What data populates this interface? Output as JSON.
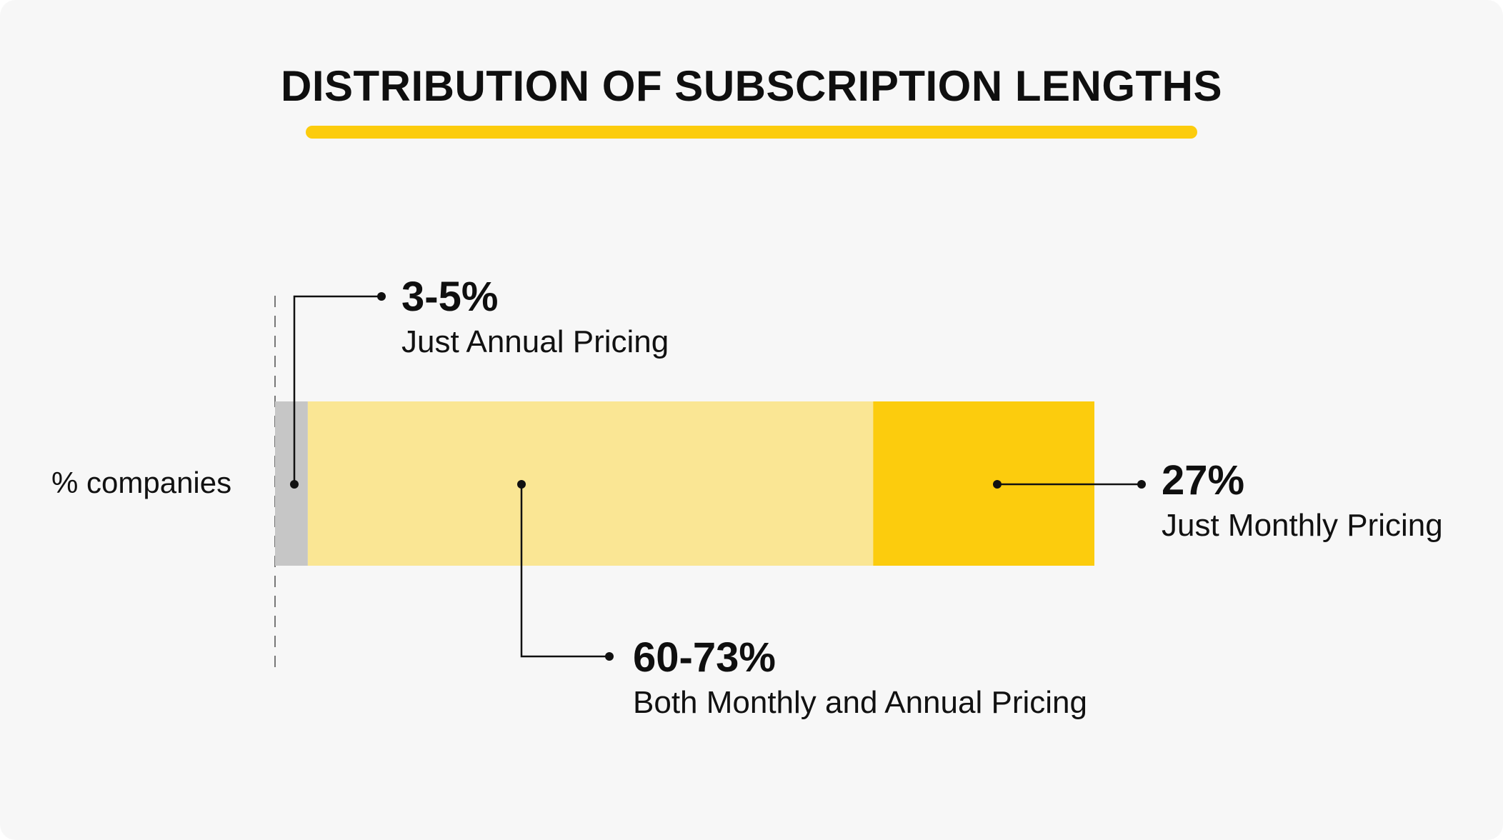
{
  "title": "DISTRIBUTION OF SUBSCRIPTION LENGTHS",
  "colors": {
    "background": "#f7f7f7",
    "accent": "#fccc0d",
    "annual": "#c6c6c6",
    "both": "#fae694",
    "monthly": "#fccc0d",
    "leader": "#111111"
  },
  "chart_data": {
    "type": "bar",
    "orientation": "horizontal-stacked",
    "title": "DISTRIBUTION OF SUBSCRIPTION LENGTHS",
    "ylabel": "% companies",
    "xlabel": "",
    "xlim": [
      0,
      100
    ],
    "categories": [
      "% companies"
    ],
    "series": [
      {
        "name": "Just Annual Pricing",
        "values": [
          4
        ],
        "label": "3-5%",
        "color": "#c6c6c6"
      },
      {
        "name": "Both Monthly and Annual Pricing",
        "values": [
          69
        ],
        "label": "60-73%",
        "color": "#fae694"
      },
      {
        "name": "Just Monthly Pricing",
        "values": [
          27
        ],
        "label": "27%",
        "color": "#fccc0d"
      }
    ],
    "grid": false,
    "legend": "callouts"
  },
  "callouts": {
    "annual": {
      "value": "3-5%",
      "label": "Just Annual Pricing"
    },
    "both": {
      "value": "60-73%",
      "label": "Both Monthly and Annual Pricing"
    },
    "monthly": {
      "value": "27%",
      "label": "Just Monthly Pricing"
    }
  }
}
